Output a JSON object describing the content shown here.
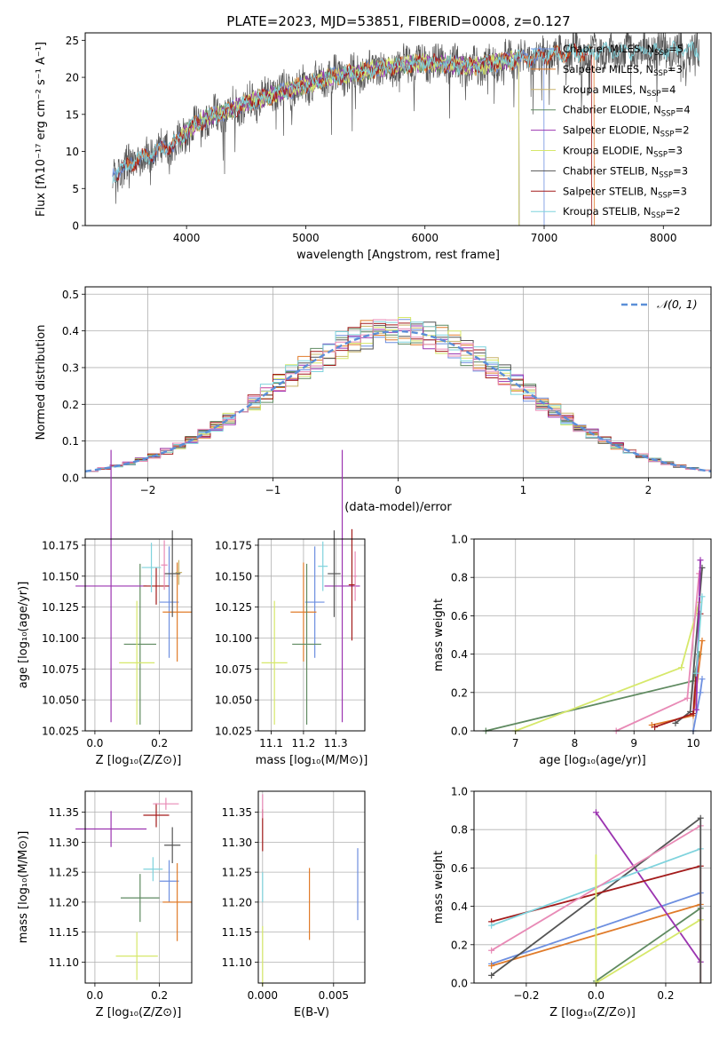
{
  "figure_title": "PLATE=2023, MJD=53851, FIBERID=0008, z=0.127",
  "series_colors": [
    "#6d8fe0",
    "#e07b2a",
    "#c9b46a",
    "#5f8a60",
    "#9b34b0",
    "#d6e86a",
    "#555555",
    "#a31b1b",
    "#7fd3dd",
    "#e88ab6"
  ],
  "chart_data": [
    {
      "id": "spectrum",
      "type": "line",
      "xlabel": "wavelength [Angstrom, rest frame]",
      "ylabel": "Flux [fλ10⁻¹⁷ erg cm⁻² s⁻¹ A⁻¹]",
      "xlim": [
        3150,
        8400
      ],
      "ylim": [
        0,
        26
      ],
      "xticks": [
        4000,
        5000,
        6000,
        7000,
        8000
      ],
      "yticks": [
        0,
        5,
        10,
        15,
        20,
        25
      ],
      "legend_position": "upper-right",
      "continuum": [
        [
          3380,
          7
        ],
        [
          3600,
          9
        ],
        [
          3900,
          11
        ],
        [
          4100,
          14
        ],
        [
          4500,
          16.5
        ],
        [
          4900,
          18.5
        ],
        [
          5200,
          20
        ],
        [
          5600,
          21.2
        ],
        [
          6000,
          22
        ],
        [
          6400,
          21.5
        ],
        [
          6800,
          22.5
        ],
        [
          7200,
          23.3
        ],
        [
          7600,
          23.5
        ],
        [
          8000,
          23.6
        ],
        [
          8300,
          23.5
        ]
      ],
      "series": [
        {
          "name": "Chabrier MILES, N_SSP=5",
          "x_range": [
            3380,
            7000
          ]
        },
        {
          "name": "Salpeter MILES, N_SSP=3",
          "x_range": [
            3500,
            7420
          ]
        },
        {
          "name": "Kroupa MILES, N_SSP=4",
          "x_range": [
            3950,
            6790
          ]
        },
        {
          "name": "Chabrier ELODIE, N_SSP=4",
          "x_range": [
            3950,
            6790
          ]
        },
        {
          "name": "Salpeter ELODIE, N_SSP=2",
          "x_range": [
            3950,
            6790
          ]
        },
        {
          "name": "Kroupa ELODIE, N_SSP=3",
          "x_range": [
            3950,
            6790
          ]
        },
        {
          "name": "Chabrier STELIB, N_SSP=3",
          "x_range": [
            3380,
            8300
          ]
        },
        {
          "name": "Salpeter STELIB, N_SSP=3",
          "x_range": [
            3400,
            7400
          ]
        },
        {
          "name": "Kroupa STELIB, N_SSP=2",
          "x_range": [
            3380,
            8300
          ]
        }
      ]
    },
    {
      "id": "residuals",
      "type": "histogram",
      "xlabel": "(data-model)/error",
      "ylabel": "Normed distribution",
      "xlim": [
        -2.5,
        2.5
      ],
      "ylim": [
        0,
        0.52
      ],
      "xticks": [
        -2,
        -1,
        0,
        1,
        2
      ],
      "yticks": [
        0,
        0.1,
        0.2,
        0.3,
        0.4,
        0.5
      ],
      "grid": true,
      "legend_label": "𝒩(0, 1)",
      "legend_position": "upper-right",
      "bin_width": 0.1,
      "reference_curve": "standard normal pdf"
    },
    {
      "id": "age_vs_Z",
      "type": "errorbar",
      "xlabel": "Z [log₁₀(Z/Z⊙)]",
      "ylabel": "age  [log₁₀(age/yr)]",
      "xlim": [
        -0.03,
        0.3
      ],
      "ylim": [
        10.025,
        10.18
      ],
      "xticks": [
        0.0,
        0.2
      ],
      "yticks": [
        10.025,
        10.05,
        10.075,
        10.1,
        10.125,
        10.15,
        10.175
      ],
      "grid": true,
      "points": [
        {
          "c": 0,
          "x": 0.23,
          "y": 10.129,
          "xerr": 0.03,
          "yerr": 0.045
        },
        {
          "c": 1,
          "x": 0.255,
          "y": 10.121,
          "xerr": 0.045,
          "yerr": 0.04
        },
        {
          "c": 2,
          "x": 0.26,
          "y": 10.153,
          "xerr": 0.01,
          "yerr": 0.01
        },
        {
          "c": 3,
          "x": 0.14,
          "y": 10.095,
          "xerr": 0.05,
          "yerr": 0.065
        },
        {
          "c": 4,
          "x": 0.05,
          "y": 10.142,
          "xerr": 0.11,
          "yerr": 0.11
        },
        {
          "c": 5,
          "x": 0.13,
          "y": 10.08,
          "xerr": 0.055,
          "yerr": 0.05
        },
        {
          "c": 6,
          "x": 0.24,
          "y": 10.152,
          "xerr": 0.025,
          "yerr": 0.035
        },
        {
          "c": 7,
          "x": 0.19,
          "y": 10.142,
          "xerr": 0.04,
          "yerr": 0.015
        },
        {
          "c": 8,
          "x": 0.175,
          "y": 10.157,
          "xerr": 0.03,
          "yerr": 0.02
        },
        {
          "c": 9,
          "x": 0.215,
          "y": 10.159,
          "xerr": 0.01,
          "yerr": 0.02
        }
      ]
    },
    {
      "id": "age_vs_mass",
      "type": "errorbar",
      "xlabel": "mass [log₁₀(M/M⊙)]",
      "ylabel": "",
      "xlim": [
        11.06,
        11.39
      ],
      "ylim": [
        10.025,
        10.18
      ],
      "xticks": [
        11.1,
        11.2,
        11.3
      ],
      "yticks": [
        10.025,
        10.05,
        10.075,
        10.1,
        10.125,
        10.15,
        10.175
      ],
      "grid": true,
      "points": [
        {
          "c": 0,
          "x": 11.235,
          "y": 10.129,
          "xerr": 0.03,
          "yerr": 0.045
        },
        {
          "c": 1,
          "x": 11.2,
          "y": 10.121,
          "xerr": 0.04,
          "yerr": 0.04
        },
        {
          "c": 3,
          "x": 11.21,
          "y": 10.095,
          "xerr": 0.045,
          "yerr": 0.065
        },
        {
          "c": 4,
          "x": 11.32,
          "y": 10.142,
          "xerr": 0.055,
          "yerr": 0.11
        },
        {
          "c": 5,
          "x": 11.11,
          "y": 10.08,
          "xerr": 0.04,
          "yerr": 0.05
        },
        {
          "c": 6,
          "x": 11.295,
          "y": 10.152,
          "xerr": 0.02,
          "yerr": 0.035
        },
        {
          "c": 7,
          "x": 11.35,
          "y": 10.143,
          "xerr": 0.01,
          "yerr": 0.045
        },
        {
          "c": 8,
          "x": 11.26,
          "y": 10.158,
          "xerr": 0.015,
          "yerr": 0.02
        },
        {
          "c": 9,
          "x": 11.36,
          "y": 10.15,
          "xerr": 0.005,
          "yerr": 0.02
        }
      ]
    },
    {
      "id": "weight_vs_age",
      "type": "line",
      "xlabel": "age  [log₁₀(age/yr)]",
      "ylabel": "mass weight",
      "xlim": [
        6.3,
        10.3
      ],
      "ylim": [
        0,
        1
      ],
      "xticks": [
        7,
        8,
        9,
        10
      ],
      "yticks": [
        0,
        0.2,
        0.4,
        0.6,
        0.8,
        1.0
      ],
      "grid": true,
      "series": [
        {
          "c": 3,
          "x": [
            6.5,
            10.0,
            10.1
          ],
          "y": [
            0.0,
            0.26,
            0.4
          ]
        },
        {
          "c": 5,
          "x": [
            7.0,
            9.8,
            10.1
          ],
          "y": [
            0.0,
            0.33,
            0.67
          ]
        },
        {
          "c": 9,
          "x": [
            8.7,
            9.9,
            10.1
          ],
          "y": [
            0.0,
            0.17,
            0.82
          ]
        },
        {
          "c": 1,
          "x": [
            9.3,
            10.0,
            10.15
          ],
          "y": [
            0.03,
            0.08,
            0.47
          ]
        },
        {
          "c": 6,
          "x": [
            9.7,
            9.95,
            10.15
          ],
          "y": [
            0.04,
            0.1,
            0.85
          ]
        },
        {
          "c": 7,
          "x": [
            9.35,
            10.0,
            10.12
          ],
          "y": [
            0.02,
            0.09,
            0.61
          ]
        },
        {
          "c": 0,
          "x": [
            10.0,
            10.12,
            10.15
          ],
          "y": [
            0.0,
            0.2,
            0.27
          ]
        },
        {
          "c": 4,
          "x": [
            10.05,
            10.12
          ],
          "y": [
            0.11,
            0.89
          ]
        },
        {
          "c": 8,
          "x": [
            10.05,
            10.15
          ],
          "y": [
            0.3,
            0.7
          ]
        }
      ]
    },
    {
      "id": "mass_vs_Z",
      "type": "errorbar",
      "xlabel": "Z [log₁₀(Z/Z⊙)]",
      "ylabel": "mass [log₁₀(M/M⊙)]",
      "xlim": [
        -0.03,
        0.3
      ],
      "ylim": [
        11.065,
        11.385
      ],
      "xticks": [
        0.0,
        0.2
      ],
      "yticks": [
        11.1,
        11.15,
        11.2,
        11.25,
        11.3,
        11.35
      ],
      "grid": true,
      "points": [
        {
          "c": 0,
          "x": 0.23,
          "y": 11.235,
          "xerr": 0.03,
          "yerr": 0.035
        },
        {
          "c": 1,
          "x": 0.255,
          "y": 11.2,
          "xerr": 0.045,
          "yerr": 0.065
        },
        {
          "c": 3,
          "x": 0.14,
          "y": 11.207,
          "xerr": 0.06,
          "yerr": 0.04
        },
        {
          "c": 4,
          "x": 0.05,
          "y": 11.322,
          "xerr": 0.11,
          "yerr": 0.03
        },
        {
          "c": 5,
          "x": 0.13,
          "y": 11.11,
          "xerr": 0.065,
          "yerr": 0.04
        },
        {
          "c": 6,
          "x": 0.24,
          "y": 11.295,
          "xerr": 0.025,
          "yerr": 0.03
        },
        {
          "c": 7,
          "x": 0.19,
          "y": 11.345,
          "xerr": 0.04,
          "yerr": 0.02
        },
        {
          "c": 8,
          "x": 0.18,
          "y": 11.255,
          "xerr": 0.03,
          "yerr": 0.02
        },
        {
          "c": 9,
          "x": 0.22,
          "y": 11.364,
          "xerr": 0.04,
          "yerr": 0.01
        }
      ]
    },
    {
      "id": "mass_vs_ebv",
      "type": "errorbar",
      "xlabel": "E(B-V)",
      "ylabel": "",
      "xlim": [
        -0.0003,
        0.0072
      ],
      "ylim": [
        11.065,
        11.385
      ],
      "xticks": [
        0.0,
        0.005
      ],
      "yticks": [
        11.1,
        11.15,
        11.2,
        11.25,
        11.3,
        11.35
      ],
      "grid": true,
      "points": [
        {
          "c": 0,
          "x": 0.0067,
          "y": 11.23,
          "xerr": 0,
          "yerr": 0.06
        },
        {
          "c": 1,
          "x": 0.0033,
          "y": 11.197,
          "xerr": 0,
          "yerr": 0.06
        },
        {
          "c": 5,
          "x": 0.0,
          "y": 11.11,
          "xerr": 0,
          "yerr": 0.05
        },
        {
          "c": 7,
          "x": 0.0,
          "y": 11.32,
          "xerr": 0,
          "yerr": 0.035
        },
        {
          "c": 8,
          "x": 0.0,
          "y": 11.225,
          "xerr": 0,
          "yerr": 0.025
        },
        {
          "c": 9,
          "x": 0.0,
          "y": 11.36,
          "xerr": 0,
          "yerr": 0.02
        }
      ]
    },
    {
      "id": "weight_vs_Z",
      "type": "line",
      "xlabel": "Z [log₁₀(Z/Z⊙)]",
      "ylabel": "mass weight",
      "xlim": [
        -0.35,
        0.33
      ],
      "ylim": [
        0,
        1
      ],
      "xticks": [
        -0.2,
        0.0,
        0.2
      ],
      "yticks": [
        0,
        0.2,
        0.4,
        0.6,
        0.8,
        1.0
      ],
      "grid": true,
      "series": [
        {
          "c": 0,
          "x": [
            -0.3,
            0.3
          ],
          "y": [
            0.1,
            0.47
          ]
        },
        {
          "c": 1,
          "x": [
            -0.3,
            0.3
          ],
          "y": [
            0.09,
            0.41
          ]
        },
        {
          "c": 3,
          "x": [
            0.0,
            0.3
          ],
          "y": [
            0.01,
            0.39
          ]
        },
        {
          "c": 4,
          "x": [
            0.0,
            0.3
          ],
          "y": [
            0.89,
            0.11
          ]
        },
        {
          "c": 5,
          "x": [
            0.0,
            0.3
          ],
          "y": [
            0.0,
            0.33
          ]
        },
        {
          "c": 6,
          "x": [
            -0.3,
            0.3
          ],
          "y": [
            0.04,
            0.86
          ]
        },
        {
          "c": 7,
          "x": [
            -0.3,
            0.3
          ],
          "y": [
            0.32,
            0.61
          ]
        },
        {
          "c": 8,
          "x": [
            -0.3,
            0.3
          ],
          "y": [
            0.3,
            0.7
          ]
        },
        {
          "c": 9,
          "x": [
            -0.3,
            0.3
          ],
          "y": [
            0.17,
            0.82
          ]
        }
      ],
      "vertical_marks": [
        {
          "c": 5,
          "x": 0.0,
          "y": [
            0.0,
            0.67
          ]
        },
        {
          "c": 7,
          "x": 0.3,
          "y": [
            0.0,
            0.61
          ]
        },
        {
          "c": 6,
          "x": 0.3,
          "y": [
            0.0,
            0.86
          ]
        }
      ]
    }
  ]
}
